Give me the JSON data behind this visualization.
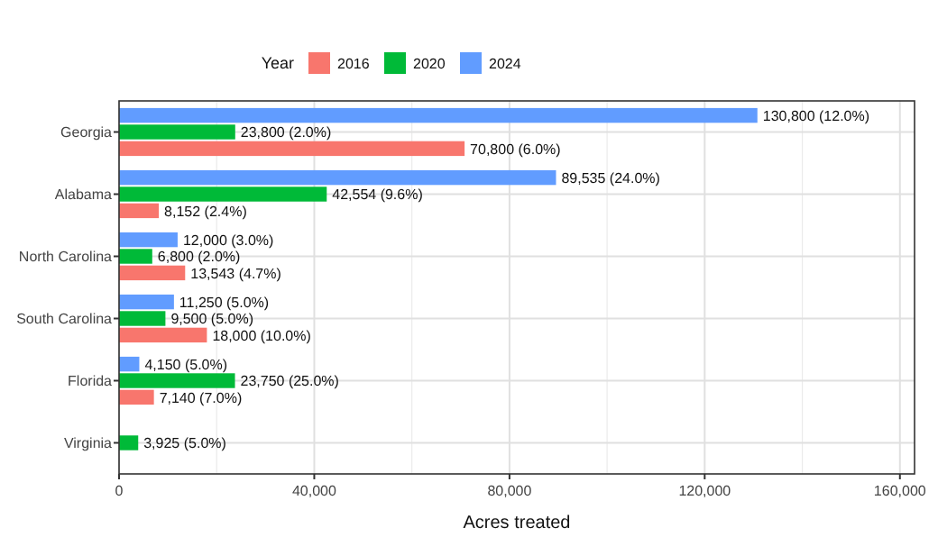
{
  "chart_data": {
    "type": "bar",
    "orientation": "horizontal",
    "xlabel": "Acres treated",
    "legend_title": "Year",
    "legend": "top",
    "categories": [
      "Georgia",
      "Alabama",
      "North Carolina",
      "South Carolina",
      "Florida",
      "Virginia"
    ],
    "series": [
      {
        "name": "2016",
        "color": "#f8766d",
        "values": [
          70800,
          8152,
          13543,
          18000,
          7140,
          null
        ],
        "value_labels": [
          "70,800 (6.0%)",
          "8,152 (2.4%)",
          "13,543 (4.7%)",
          "18,000 (10.0%)",
          "7,140 (7.0%)",
          null
        ]
      },
      {
        "name": "2020",
        "color": "#00ba38",
        "values": [
          23800,
          42554,
          6800,
          9500,
          23750,
          3925
        ],
        "value_labels": [
          "23,800 (2.0%)",
          "42,554 (9.6%)",
          "6,800 (2.0%)",
          "9,500 (5.0%)",
          "23,750 (25.0%)",
          "3,925 (5.0%)"
        ]
      },
      {
        "name": "2024",
        "color": "#619cff",
        "values": [
          130800,
          89535,
          12000,
          11250,
          4150,
          null
        ],
        "value_labels": [
          "130,800 (12.0%)",
          "89,535 (24.0%)",
          "12,000 (3.0%)",
          "11,250 (5.0%)",
          "4,150 (5.0%)",
          null
        ]
      }
    ],
    "xlim": [
      0,
      163000
    ],
    "xticks": [
      {
        "value": 0,
        "label": "0"
      },
      {
        "value": 40000,
        "label": "40,000"
      },
      {
        "value": 80000,
        "label": "80,000"
      },
      {
        "value": 120000,
        "label": "120,000"
      },
      {
        "value": 160000,
        "label": "160,000"
      }
    ],
    "grid": true
  }
}
